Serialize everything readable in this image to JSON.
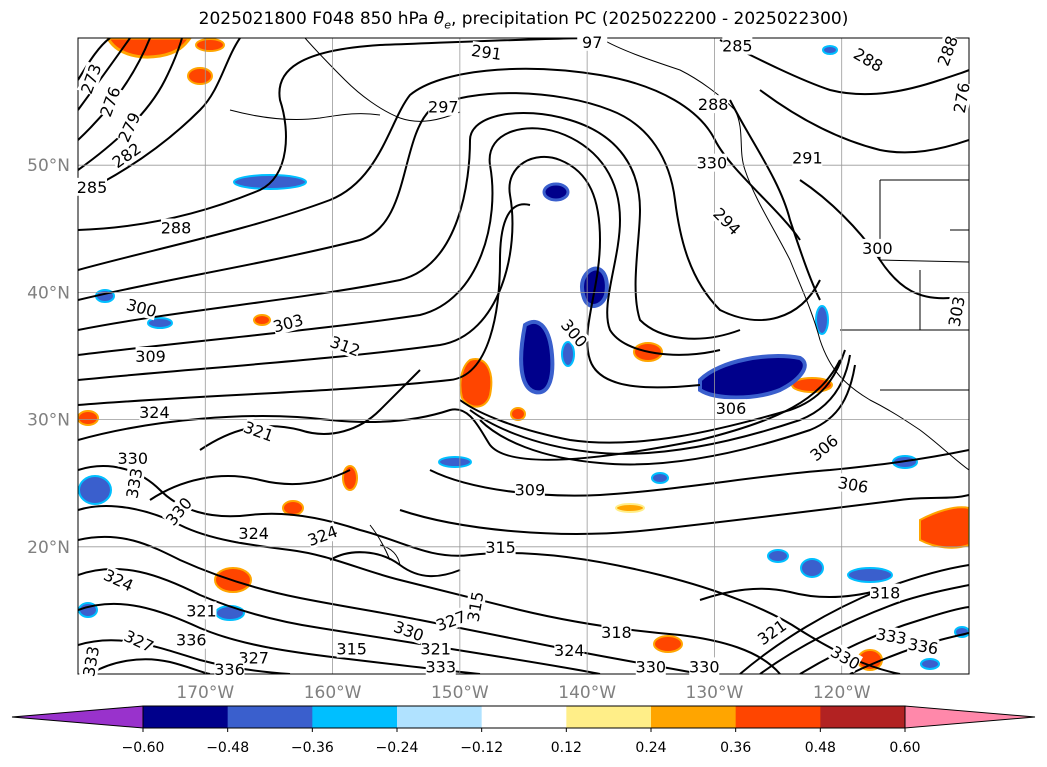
{
  "title": {
    "prefix": "2025021800 F048 850 hPa ",
    "theta": "θ",
    "theta_sub": "e",
    "suffix": ", precipitation PC (2025022200 - 2025022300)"
  },
  "map": {
    "lon_range": [
      -180,
      -110
    ],
    "lat_range": [
      10,
      60
    ],
    "gridlines": true,
    "lat_labels": [
      "50°N",
      "40°N",
      "30°N",
      "20°N"
    ],
    "lat_values": [
      50,
      40,
      30,
      20
    ],
    "lon_labels": [
      "170°W",
      "160°W",
      "150°W",
      "140°W",
      "130°W",
      "120°W"
    ],
    "lon_values": [
      -170,
      -160,
      -150,
      -140,
      -130,
      -120
    ]
  },
  "contour_labels": [
    {
      "text": "273",
      "lon": -179.0,
      "lat": 56.8,
      "rot": -70
    },
    {
      "text": "276",
      "lon": -177.5,
      "lat": 55.0,
      "rot": -70
    },
    {
      "text": "279",
      "lon": -176.0,
      "lat": 53.0,
      "rot": -65
    },
    {
      "text": "282",
      "lon": -176.2,
      "lat": 50.8,
      "rot": -35
    },
    {
      "text": "285",
      "lon": -178.9,
      "lat": 48.3,
      "rot": 0
    },
    {
      "text": "288",
      "lon": -172.3,
      "lat": 45.1,
      "rot": 0
    },
    {
      "text": "291",
      "lon": -147.9,
      "lat": 58.9,
      "rot": 8
    },
    {
      "text": "297",
      "lon": -151.3,
      "lat": 54.6,
      "rot": 0
    },
    {
      "text": "300",
      "lon": -175.0,
      "lat": 38.8,
      "rot": 15
    },
    {
      "text": "303",
      "lon": -163.5,
      "lat": 37.6,
      "rot": -15
    },
    {
      "text": "309",
      "lon": -174.3,
      "lat": 35.0,
      "rot": 0
    },
    {
      "text": "312",
      "lon": -159.0,
      "lat": 35.8,
      "rot": 20
    },
    {
      "text": "324",
      "lon": -174.0,
      "lat": 30.6,
      "rot": 0
    },
    {
      "text": "321",
      "lon": -165.8,
      "lat": 29.1,
      "rot": 20
    },
    {
      "text": "330",
      "lon": -175.7,
      "lat": 27.0,
      "rot": 0
    },
    {
      "text": "333",
      "lon": -175.6,
      "lat": 25.0,
      "rot": -80
    },
    {
      "text": "330",
      "lon": -172.1,
      "lat": 22.8,
      "rot": -50
    },
    {
      "text": "324",
      "lon": -166.2,
      "lat": 21.1,
      "rot": 0
    },
    {
      "text": "324",
      "lon": -160.8,
      "lat": 20.9,
      "rot": -20
    },
    {
      "text": "324",
      "lon": -176.8,
      "lat": 17.4,
      "rot": 25
    },
    {
      "text": "321",
      "lon": -170.3,
      "lat": 15.0,
      "rot": 0
    },
    {
      "text": "327",
      "lon": -175.2,
      "lat": 12.6,
      "rot": 25
    },
    {
      "text": "336",
      "lon": -171.1,
      "lat": 12.7,
      "rot": 0
    },
    {
      "text": "333",
      "lon": -179.0,
      "lat": 11.0,
      "rot": -80
    },
    {
      "text": "315",
      "lon": -158.5,
      "lat": 12.0,
      "rot": 0
    },
    {
      "text": "327",
      "lon": -166.2,
      "lat": 11.3,
      "rot": 0
    },
    {
      "text": "336",
      "lon": -168.1,
      "lat": 10.4,
      "rot": 0
    },
    {
      "text": "330",
      "lon": -154.0,
      "lat": 13.4,
      "rot": 20
    },
    {
      "text": "327",
      "lon": -150.7,
      "lat": 14.2,
      "rot": -20
    },
    {
      "text": "321",
      "lon": -151.9,
      "lat": 12.0,
      "rot": 0
    },
    {
      "text": "315",
      "lon": -148.8,
      "lat": 15.3,
      "rot": -80
    },
    {
      "text": "333",
      "lon": -151.5,
      "lat": 10.6,
      "rot": 0
    },
    {
      "text": "324",
      "lon": -141.4,
      "lat": 11.9,
      "rot": 0
    },
    {
      "text": "318",
      "lon": -137.7,
      "lat": 13.3,
      "rot": 0
    },
    {
      "text": "330",
      "lon": -135.0,
      "lat": 10.6,
      "rot": 0
    },
    {
      "text": "330",
      "lon": -130.8,
      "lat": 10.6,
      "rot": 0
    },
    {
      "text": "315",
      "lon": -146.8,
      "lat": 20.0,
      "rot": 0
    },
    {
      "text": "309",
      "lon": -144.5,
      "lat": 24.5,
      "rot": 0
    },
    {
      "text": "300",
      "lon": -141.0,
      "lat": 36.8,
      "rot": 50
    },
    {
      "text": "306",
      "lon": -128.7,
      "lat": 30.9,
      "rot": 0
    },
    {
      "text": "306",
      "lon": -121.4,
      "lat": 27.8,
      "rot": -40
    },
    {
      "text": "306",
      "lon": -119.1,
      "lat": 24.9,
      "rot": 10
    },
    {
      "text": "294",
      "lon": -129.0,
      "lat": 45.6,
      "rot": 45
    },
    {
      "text": "291",
      "lon": -122.7,
      "lat": 50.6,
      "rot": 0
    },
    {
      "text": "288",
      "lon": -130.1,
      "lat": 54.8,
      "rot": 0
    },
    {
      "text": "285",
      "lon": -128.2,
      "lat": 59.4,
      "rot": 0
    },
    {
      "text": "288",
      "lon": -117.9,
      "lat": 58.3,
      "rot": 30
    },
    {
      "text": "288",
      "lon": -111.7,
      "lat": 59.0,
      "rot": -70
    },
    {
      "text": "276",
      "lon": -110.6,
      "lat": 55.3,
      "rot": -80
    },
    {
      "text": "300",
      "lon": -117.2,
      "lat": 43.5,
      "rot": 0
    },
    {
      "text": "303",
      "lon": -111.0,
      "lat": 38.5,
      "rot": -80
    },
    {
      "text": "321",
      "lon": -125.5,
      "lat": 13.3,
      "rot": -35
    },
    {
      "text": "318",
      "lon": -116.6,
      "lat": 16.4,
      "rot": 0
    },
    {
      "text": "333",
      "lon": -116.1,
      "lat": 13.0,
      "rot": 10
    },
    {
      "text": "336",
      "lon": -113.6,
      "lat": 12.2,
      "rot": 10
    },
    {
      "text": "330",
      "lon": -119.7,
      "lat": 11.3,
      "rot": 30
    },
    {
      "text": "97",
      "lon": -139.6,
      "lat": 59.7,
      "rot": 0
    },
    {
      "text": "330",
      "lon": -130.2,
      "lat": 50.2,
      "rot": 0
    }
  ],
  "colorbar": {
    "ticks": [
      "−0.60",
      "−0.48",
      "−0.36",
      "−0.24",
      "−0.12",
      "0.12",
      "0.24",
      "0.36",
      "0.48",
      "0.60"
    ],
    "colors": [
      "#9932cc",
      "#00008b",
      "#3a5fcd",
      "#00bfff",
      "#b0e2ff",
      "#ffffff",
      "#ffee88",
      "#ffa500",
      "#ff4500",
      "#b22222",
      "#ff88aa"
    ],
    "extend": "both"
  }
}
